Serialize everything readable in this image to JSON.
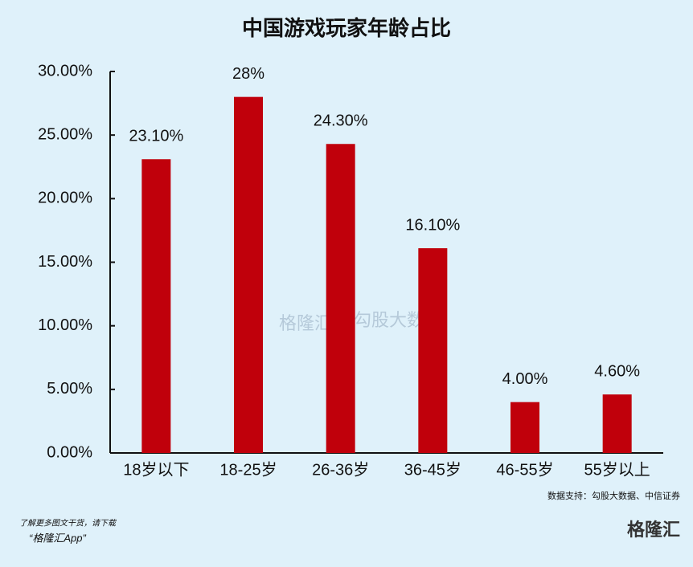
{
  "chart_data": {
    "type": "bar",
    "title": "中国游戏玩家年龄占比",
    "categories": [
      "18岁以下",
      "18-25岁",
      "26-36岁",
      "36-45岁",
      "46-55岁",
      "55岁以上"
    ],
    "values": [
      23.1,
      28,
      24.3,
      16.1,
      4.0,
      4.6
    ],
    "value_labels": [
      "23.10%",
      "28%",
      "24.30%",
      "16.10%",
      "4.00%",
      "4.60%"
    ],
    "color": "#c0000b",
    "ylim": [
      0,
      30
    ],
    "yticks": [
      {
        "value": 0,
        "label": "0.00%"
      },
      {
        "value": 5,
        "label": "5.00%"
      },
      {
        "value": 10,
        "label": "10.00%"
      },
      {
        "value": 15,
        "label": "15.00%"
      },
      {
        "value": 20,
        "label": "20.00%"
      },
      {
        "value": 25,
        "label": "25.00%"
      },
      {
        "value": 30,
        "label": "30.00%"
      }
    ],
    "grid": false,
    "source": "数据支持：勾股大数据、中信证券",
    "watermarks": [
      "格隆汇",
      "勾股大数据"
    ]
  },
  "footer": {
    "line1": "了解更多图文干货，请下载",
    "line2": "“格隆汇App”",
    "logo": "格隆汇"
  }
}
